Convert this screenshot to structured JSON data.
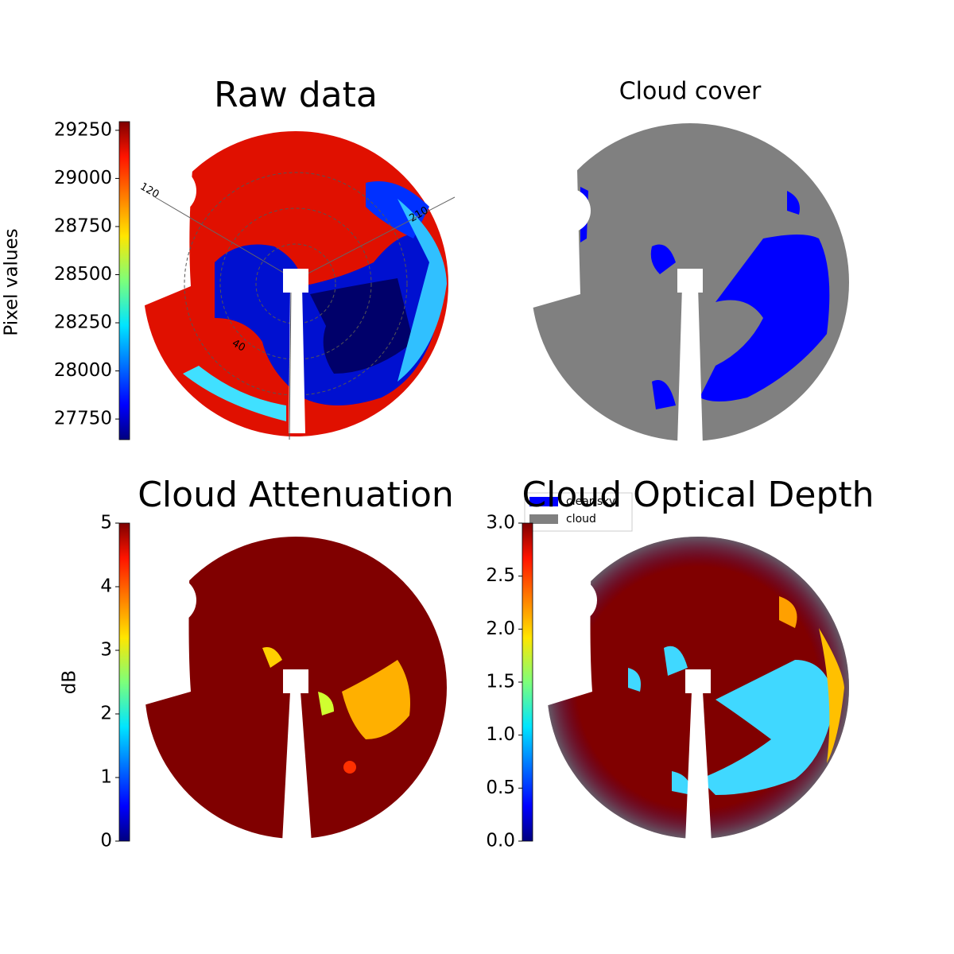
{
  "chart_data": [
    {
      "type": "image",
      "title": "Raw data",
      "colorbar_label": "Pixel values",
      "clim": [
        27643,
        29295
      ],
      "cticks": [
        27750,
        28000,
        28250,
        28500,
        28750,
        29000,
        29250
      ],
      "colormap": "jet",
      "polar_labels": [
        "120",
        "210",
        "40"
      ]
    },
    {
      "type": "image",
      "title": "Cloud cover",
      "series": [
        {
          "name": "clear sky",
          "color": "#0000ff"
        },
        {
          "name": "cloud",
          "color": "#808080"
        }
      ]
    },
    {
      "type": "image",
      "title": "Cloud Attenuation",
      "colorbar_label": "dB",
      "clim": [
        0,
        5
      ],
      "cticks": [
        0,
        1,
        2,
        3,
        4,
        5
      ],
      "colormap": "jet"
    },
    {
      "type": "image",
      "title": "Cloud Optical Depth",
      "clim": [
        0,
        3
      ],
      "colormap": "jet",
      "cticks": [
        {
          "value": 0,
          "label": "0.0"
        },
        {
          "value": 0.5,
          "label": "0.5"
        },
        {
          "value": 1,
          "label": "1.0"
        },
        {
          "value": 1.5,
          "label": "1.5"
        },
        {
          "value": 2,
          "label": "2.0"
        },
        {
          "value": 2.5,
          "label": "2.5"
        },
        {
          "value": 3,
          "label": "3.0"
        }
      ]
    }
  ]
}
